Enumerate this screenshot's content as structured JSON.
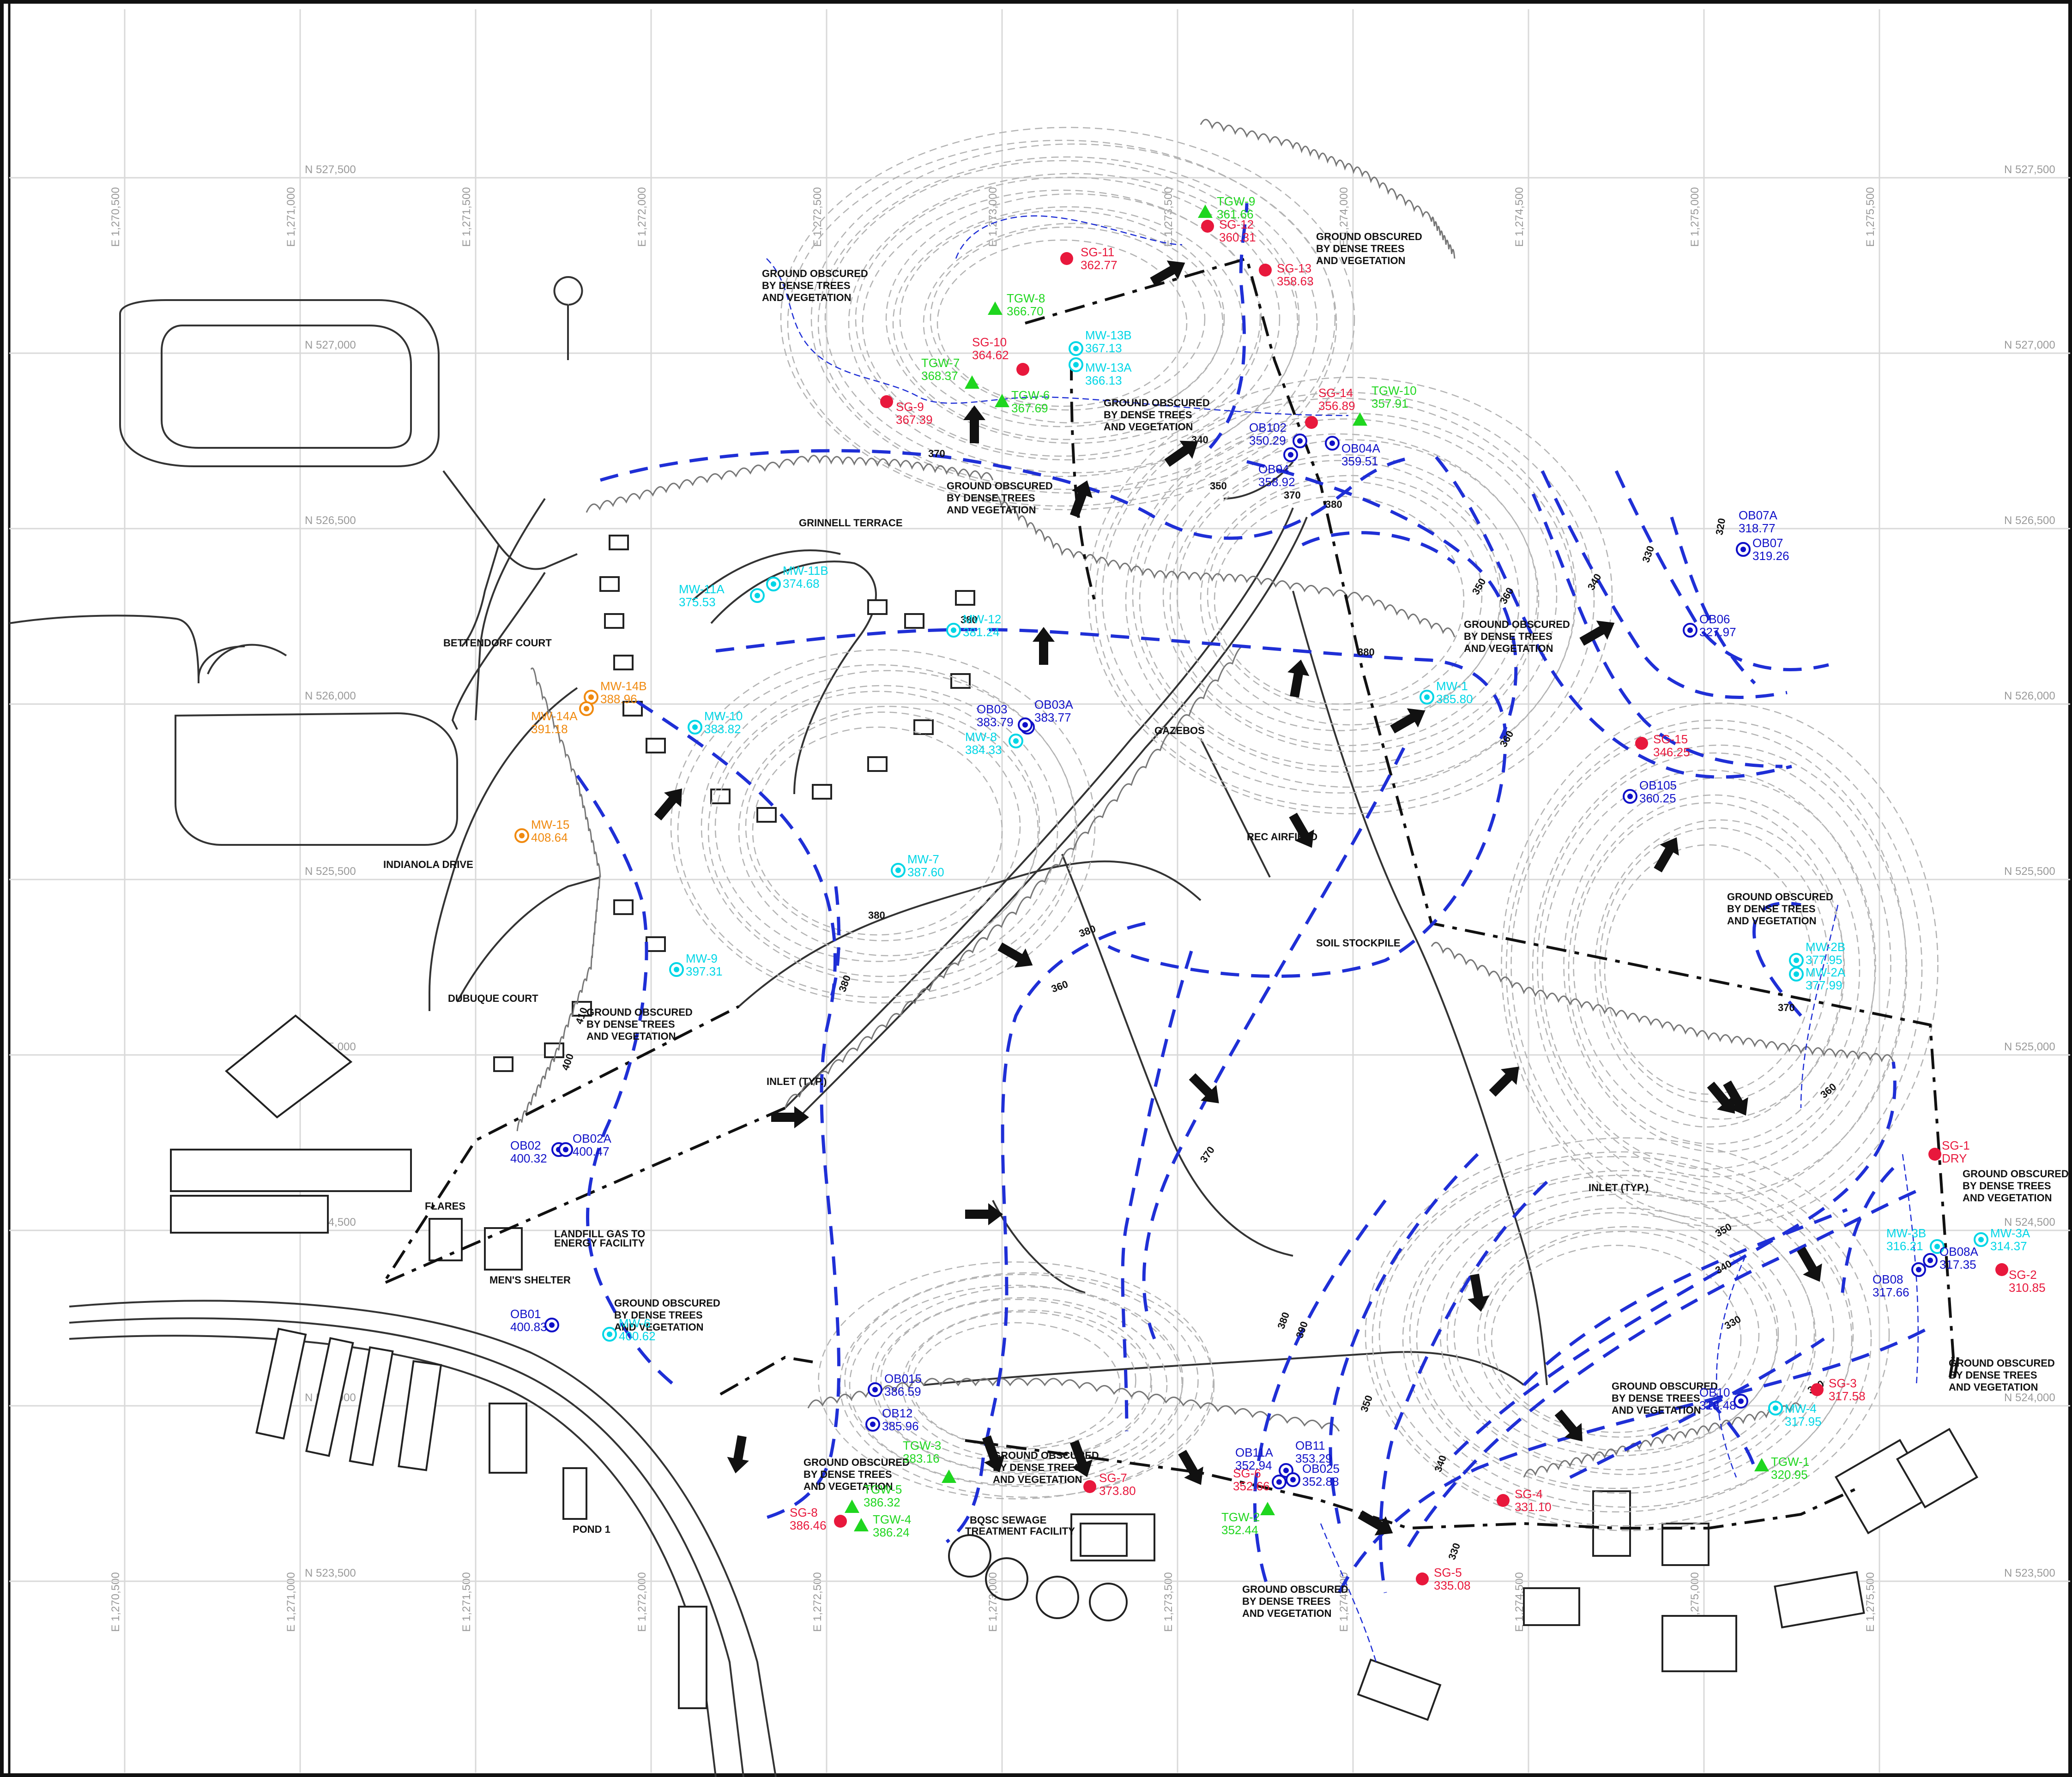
{
  "map": {
    "colors": {
      "staff_gauge": "#e8183c",
      "temp_gw_well": "#1fd61f",
      "monitoring_well_shallow": "#00d6e6",
      "observation_well": "#1010c8",
      "monitoring_well_deep": "#f08a10",
      "gw_contour": "#1f2fd6"
    },
    "grid": {
      "easting": [
        "E 1,270,500",
        "E 1,271,000",
        "E 1,271,500",
        "E 1,272,000",
        "E 1,272,500",
        "E 1,273,000",
        "E 1,273,500",
        "E 1,274,000",
        "E 1,274,500",
        "E 1,275,000",
        "E 1,275,500"
      ],
      "northing": [
        "N 527,500",
        "N 527,000",
        "N 526,500",
        "N 526,000",
        "N 525,500",
        "N 525,000",
        "N 524,500",
        "N 524,000",
        "N 523,500"
      ]
    },
    "contour_labels": [
      "370",
      "380",
      "380",
      "380",
      "380",
      "360",
      "350",
      "340",
      "330",
      "320",
      "380",
      "370",
      "380",
      "360",
      "370",
      "350",
      "340",
      "330",
      "320",
      "360",
      "350",
      "340",
      "330",
      "390",
      "380",
      "370",
      "360",
      "350",
      "340",
      "400",
      "410"
    ],
    "points": [
      {
        "id": "SG-11",
        "value": "362.77",
        "type": "staff_gauge"
      },
      {
        "id": "SG-12",
        "value": "360.31",
        "type": "staff_gauge"
      },
      {
        "id": "SG-13",
        "value": "358.63",
        "type": "staff_gauge"
      },
      {
        "id": "SG-10",
        "value": "364.62",
        "type": "staff_gauge"
      },
      {
        "id": "SG-9",
        "value": "367.39",
        "type": "staff_gauge"
      },
      {
        "id": "SG-14",
        "value": "356.89",
        "type": "staff_gauge"
      },
      {
        "id": "SG-15",
        "value": "346.25",
        "type": "staff_gauge"
      },
      {
        "id": "SG-1",
        "value": "DRY",
        "type": "staff_gauge"
      },
      {
        "id": "SG-2",
        "value": "310.85",
        "type": "staff_gauge"
      },
      {
        "id": "SG-3",
        "value": "317.58",
        "type": "staff_gauge"
      },
      {
        "id": "SG-4",
        "value": "331.10",
        "type": "staff_gauge"
      },
      {
        "id": "SG-5",
        "value": "335.08",
        "type": "staff_gauge"
      },
      {
        "id": "SG-6",
        "value": "352.66",
        "type": "staff_gauge"
      },
      {
        "id": "SG-7",
        "value": "373.80",
        "type": "staff_gauge"
      },
      {
        "id": "SG-8",
        "value": "386.46",
        "type": "staff_gauge"
      },
      {
        "id": "TGW-9",
        "value": "361.66",
        "type": "temp_gw_well"
      },
      {
        "id": "TGW-8",
        "value": "366.70",
        "type": "temp_gw_well"
      },
      {
        "id": "TGW-7",
        "value": "368.37",
        "type": "temp_gw_well"
      },
      {
        "id": "TGW-6",
        "value": "367.69",
        "type": "temp_gw_well"
      },
      {
        "id": "TGW-10",
        "value": "357.91",
        "type": "temp_gw_well"
      },
      {
        "id": "TGW-1",
        "value": "320.95",
        "type": "temp_gw_well"
      },
      {
        "id": "TGW-2",
        "value": "352.44",
        "type": "temp_gw_well"
      },
      {
        "id": "TGW-3",
        "value": "383.16",
        "type": "temp_gw_well"
      },
      {
        "id": "TGW-4",
        "value": "386.24",
        "type": "temp_gw_well"
      },
      {
        "id": "TGW-5",
        "value": "386.32",
        "type": "temp_gw_well"
      },
      {
        "id": "MW-13B",
        "value": "367.13",
        "type": "monitoring_well_shallow"
      },
      {
        "id": "MW-13A",
        "value": "366.13",
        "type": "monitoring_well_shallow"
      },
      {
        "id": "MW-11B",
        "value": "374.68",
        "type": "monitoring_well_shallow"
      },
      {
        "id": "MW-11A",
        "value": "375.53",
        "type": "monitoring_well_shallow"
      },
      {
        "id": "MW-12",
        "value": "381.24",
        "type": "monitoring_well_shallow"
      },
      {
        "id": "MW-10",
        "value": "383.82",
        "type": "monitoring_well_shallow"
      },
      {
        "id": "MW-8",
        "value": "384.33",
        "type": "monitoring_well_shallow"
      },
      {
        "id": "MW-7",
        "value": "387.60",
        "type": "monitoring_well_shallow"
      },
      {
        "id": "MW-9",
        "value": "397.31",
        "type": "monitoring_well_shallow"
      },
      {
        "id": "MW-6",
        "value": "400.62",
        "type": "monitoring_well_shallow"
      },
      {
        "id": "MW-1",
        "value": "385.80",
        "type": "monitoring_well_shallow"
      },
      {
        "id": "MW-2B",
        "value": "377.95",
        "type": "monitoring_well_shallow"
      },
      {
        "id": "MW-2A",
        "value": "377.99",
        "type": "monitoring_well_shallow"
      },
      {
        "id": "MW-3B",
        "value": "316.21",
        "type": "monitoring_well_shallow"
      },
      {
        "id": "MW-3A",
        "value": "314.37",
        "type": "monitoring_well_shallow"
      },
      {
        "id": "MW-4",
        "value": "317.95",
        "type": "monitoring_well_shallow"
      },
      {
        "id": "MW-14B",
        "value": "388.96",
        "type": "monitoring_well_deep"
      },
      {
        "id": "MW-14A",
        "value": "391.18",
        "type": "monitoring_well_deep"
      },
      {
        "id": "MW-15",
        "value": "408.64",
        "type": "monitoring_well_deep"
      },
      {
        "id": "OB102",
        "value": "350.29",
        "type": "observation_well"
      },
      {
        "id": "OB04",
        "value": "358.92",
        "type": "observation_well"
      },
      {
        "id": "OB04A",
        "value": "359.51",
        "type": "observation_well"
      },
      {
        "id": "OB07A",
        "value": "318.77",
        "type": "observation_well"
      },
      {
        "id": "OB07",
        "value": "319.26",
        "type": "observation_well"
      },
      {
        "id": "OB06",
        "value": "327.97",
        "type": "observation_well"
      },
      {
        "id": "OB105",
        "value": "360.25",
        "type": "observation_well"
      },
      {
        "id": "OB03",
        "value": "383.79",
        "type": "observation_well"
      },
      {
        "id": "OB03A",
        "value": "383.77",
        "type": "observation_well"
      },
      {
        "id": "OB02",
        "value": "400.32",
        "type": "observation_well"
      },
      {
        "id": "OB02A",
        "value": "400.47",
        "type": "observation_well"
      },
      {
        "id": "OB01",
        "value": "400.83",
        "type": "observation_well"
      },
      {
        "id": "OB015",
        "value": "386.59",
        "type": "observation_well"
      },
      {
        "id": "OB12",
        "value": "385.96",
        "type": "observation_well"
      },
      {
        "id": "OB11A",
        "value": "352.94",
        "type": "observation_well"
      },
      {
        "id": "OB11",
        "value": "353.29",
        "type": "observation_well"
      },
      {
        "id": "OB025",
        "value": "352.88",
        "type": "observation_well"
      },
      {
        "id": "OB08",
        "value": "317.66",
        "type": "observation_well"
      },
      {
        "id": "OB08A",
        "value": "317.35",
        "type": "observation_well"
      },
      {
        "id": "OB10",
        "value": "318.48",
        "type": "observation_well"
      }
    ],
    "notes": [
      "GROUND OBSCURED",
      "BY DENSE TREES",
      "AND VEGETATION",
      "GRINNELL TERRACE",
      "BETTENDORF COURT",
      "INDIANOLA DRIVE",
      "DUBUQUE COURT",
      "GAZEBOS",
      "REC AIRFIELD",
      "SOIL STOCKPILE",
      "INLET (TYP.)",
      "FLARES",
      "LANDFILL GAS TO",
      "ENERGY FACILITY",
      "MEN'S SHELTER",
      "POND 1",
      "BQSC SEWAGE",
      "TREATMENT FACILITY"
    ]
  }
}
